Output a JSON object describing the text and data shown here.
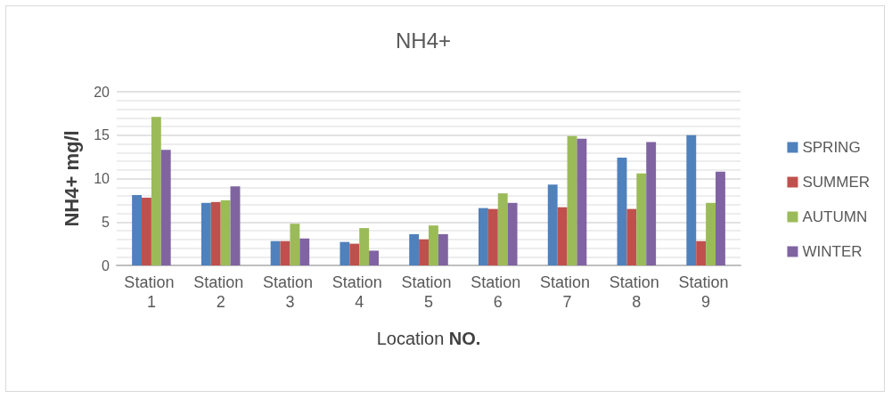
{
  "chart_data": {
    "type": "bar",
    "title": "NH4+",
    "xlabel": "Location NO.",
    "ylabel": "NH4+ mg/l",
    "categories": [
      "Station 1",
      "Station 2",
      "Station 3",
      "Station 4",
      "Station 5",
      "Station 6",
      "Station 7",
      "Station 8",
      "Station 9"
    ],
    "series": [
      {
        "name": "SPRING",
        "color": "#4f81bd",
        "values": [
          8.1,
          7.2,
          2.8,
          2.7,
          3.6,
          6.6,
          9.3,
          12.4,
          15.0
        ]
      },
      {
        "name": "SUMMER",
        "color": "#c0504d",
        "values": [
          7.8,
          7.3,
          2.8,
          2.5,
          3.0,
          6.5,
          6.7,
          6.5,
          2.8
        ]
      },
      {
        "name": "AUTUMN",
        "color": "#9bbb59",
        "values": [
          17.1,
          7.5,
          4.8,
          4.3,
          4.6,
          8.3,
          14.9,
          10.6,
          7.2
        ]
      },
      {
        "name": "WINTER",
        "color": "#8064a2",
        "values": [
          13.3,
          9.1,
          3.1,
          1.7,
          3.6,
          7.2,
          14.6,
          14.2,
          10.8
        ]
      }
    ],
    "ylim": [
      0,
      20
    ],
    "yticks": [
      0,
      {
        "value": 1,
        "label": null
      },
      {
        "value": 2,
        "label": null
      },
      {
        "value": 3,
        "label": null
      },
      {
        "value": 4,
        "label": null
      },
      5,
      {
        "value": 6,
        "label": null
      },
      {
        "value": 7,
        "label": null
      },
      {
        "value": 8,
        "label": null
      },
      {
        "value": 9,
        "label": null
      },
      10,
      {
        "value": 11,
        "label": null
      },
      {
        "value": 12,
        "label": null
      },
      {
        "value": 13,
        "label": null
      },
      {
        "value": 14,
        "label": null
      },
      15,
      {
        "value": 16,
        "label": null
      },
      {
        "value": 17,
        "label": null
      },
      {
        "value": 18,
        "label": null
      },
      {
        "value": 19,
        "label": null
      },
      20
    ],
    "grid": true,
    "legend": "right"
  }
}
